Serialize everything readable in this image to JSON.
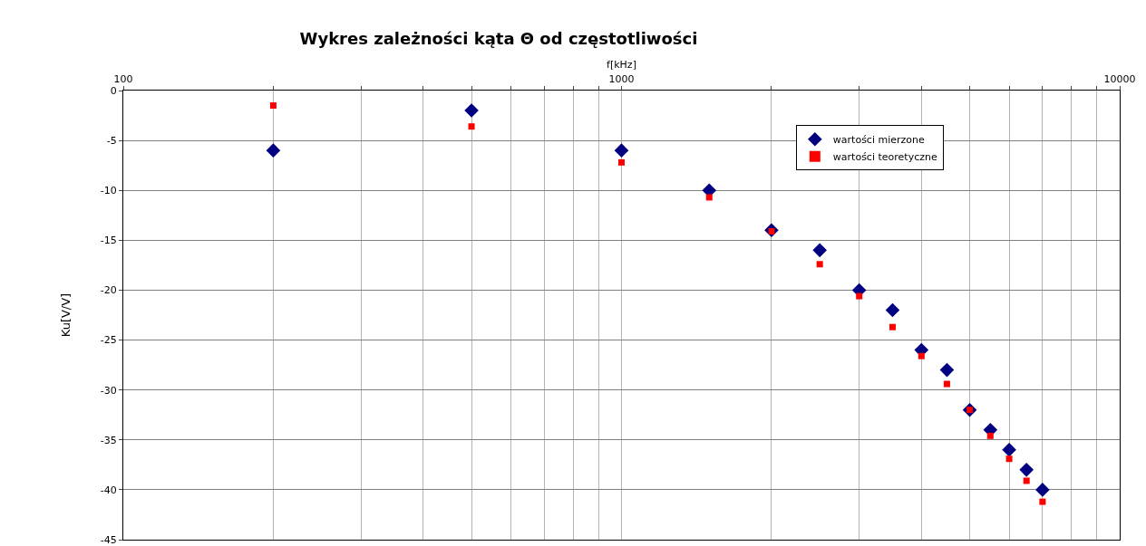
{
  "chart_data": {
    "type": "scatter",
    "title": "Wykres zależności kąta Θ od częstotliwości",
    "xlabel": "f[kHz]",
    "ylabel": "Ku[V/V]",
    "x": [
      200,
      500,
      1000,
      1500,
      2000,
      2500,
      3000,
      3500,
      4000,
      4500,
      5000,
      5500,
      6000,
      6500,
      7000
    ],
    "series": [
      {
        "name": "wartości mierzone",
        "color": "#000080",
        "marker": "diamond",
        "values": [
          -6,
          -2,
          -6,
          -10,
          -14,
          -16,
          -20,
          -22,
          -26,
          -28,
          -32,
          -34,
          -36,
          -38,
          -40
        ]
      },
      {
        "name": "wartości teoretyczne",
        "color": "#ff0000",
        "marker": "square",
        "values": [
          -1.5,
          -3.6,
          -7.2,
          -10.7,
          -14.1,
          -17.4,
          -20.6,
          -23.7,
          -26.6,
          -29.4,
          -32,
          -34.6,
          -36.9,
          -39.1,
          -41.2
        ]
      }
    ],
    "log": "x",
    "xlim": [
      100,
      10000
    ],
    "xticks": [
      100,
      {
        "value": 200,
        "label": null
      },
      {
        "value": 300,
        "label": null
      },
      {
        "value": 400,
        "label": null
      },
      {
        "value": 500,
        "label": null
      },
      {
        "value": 600,
        "label": null
      },
      {
        "value": 700,
        "label": null
      },
      {
        "value": 800,
        "label": null
      },
      {
        "value": 900,
        "label": null
      },
      1000,
      {
        "value": 2000,
        "label": null
      },
      {
        "value": 3000,
        "label": null
      },
      {
        "value": 4000,
        "label": null
      },
      {
        "value": 5000,
        "label": null
      },
      {
        "value": 6000,
        "label": null
      },
      {
        "value": 7000,
        "label": null
      },
      {
        "value": 8000,
        "label": null
      },
      {
        "value": 9000,
        "label": null
      },
      10000
    ],
    "ylim": [
      -45,
      0
    ],
    "yticks": [
      -45,
      -40,
      -35,
      -30,
      -25,
      -20,
      -15,
      -10,
      -5,
      0
    ],
    "grid": true,
    "legend": "top right"
  }
}
